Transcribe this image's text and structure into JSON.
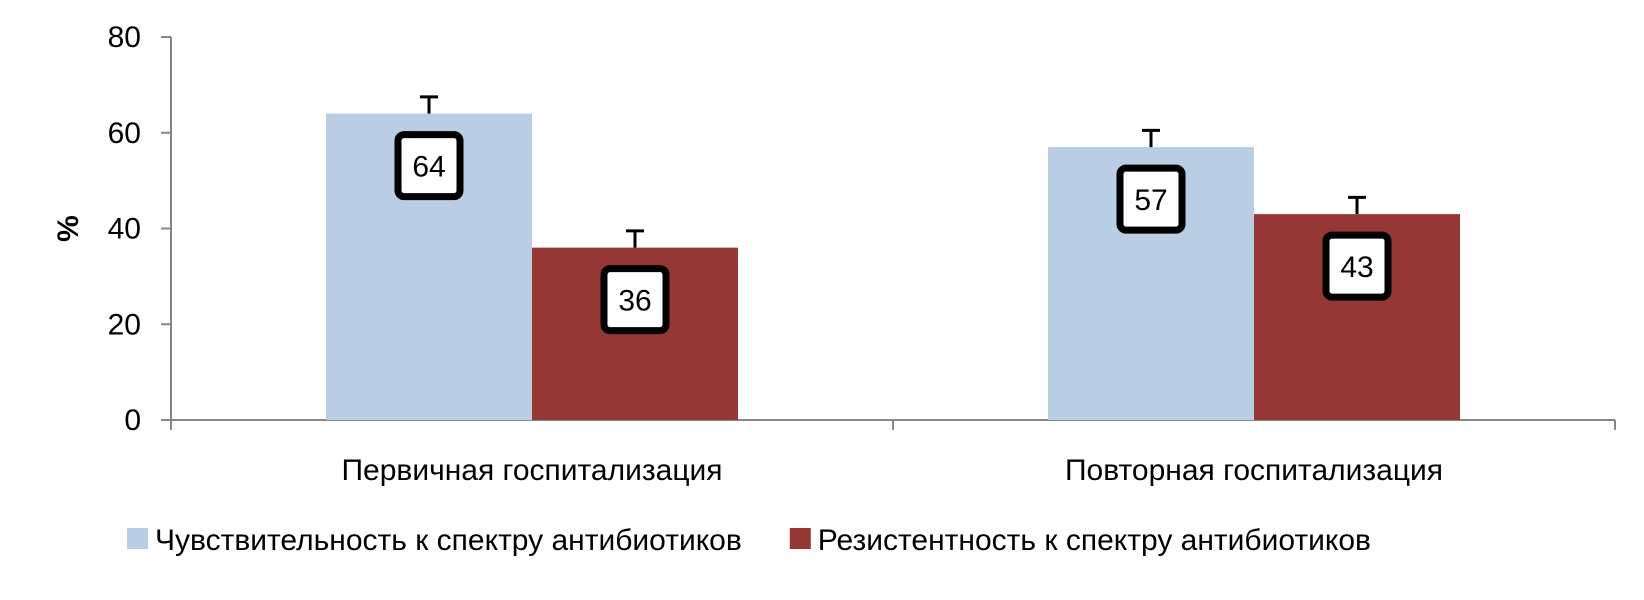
{
  "chart_data": {
    "type": "bar",
    "categories": [
      "Первичная госпитализация",
      "Повторная госпитализация"
    ],
    "series": [
      {
        "name": "Чувствительность к спектру антибиотиков",
        "values": [
          64,
          57
        ],
        "errors": [
          3.5,
          3.5
        ],
        "color": "#B9CDE5"
      },
      {
        "name": "Резистентность к спектру антибиотиков",
        "values": [
          36,
          43
        ],
        "errors": [
          3.5,
          3.5
        ],
        "color": "#953735"
      }
    ],
    "ylabel": "%",
    "xlabel": "",
    "ylim": [
      0,
      80
    ],
    "yticks": [
      0,
      20,
      40,
      60,
      80
    ],
    "grid": false,
    "legend_position": "bottom",
    "data_labels": true
  }
}
